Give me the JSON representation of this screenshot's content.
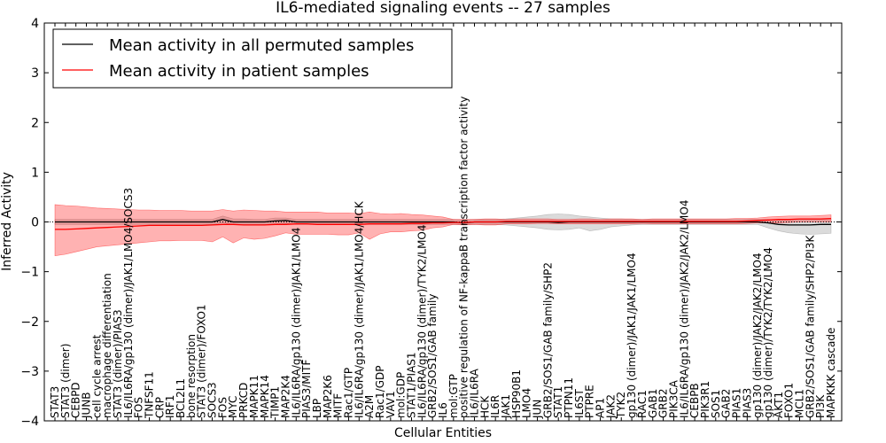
{
  "chart_data": {
    "type": "line",
    "title": "IL6-mediated signaling events -- 27 samples",
    "xlabel": "Cellular Entities",
    "ylabel": "Inferred Activity",
    "ylim": [
      -4,
      4
    ],
    "yticks": [
      -4,
      -3,
      -2,
      -1,
      0,
      1,
      2,
      3,
      4
    ],
    "legend": {
      "placement": "top-left",
      "entries": [
        {
          "label": "Mean activity in all permuted samples",
          "color": "#000000"
        },
        {
          "label": "Mean activity in patient samples",
          "color": "#ff0000"
        }
      ]
    },
    "categories": [
      "STAT3",
      "STAT3 (dimer)",
      "CEBPD",
      "JUNB",
      "cell cycle arrest",
      "macrophage differentiation",
      "STAT3 (dimer)/PIAS3",
      "IL6/IL6RA/gp130 (dimer)/JAK1/LMO4/SOCS3",
      "FOS",
      "TNFSF11",
      "CRP",
      "IRF1",
      "BCL2L1",
      "bone resorption",
      "STAT3 (dimer)/FOXO1",
      "SOCS3",
      "FOS",
      "MYC",
      "PRKCD",
      "MAPK11",
      "MAPK14",
      "TIMP1",
      "MAP2K4",
      "IL6/IL6RA/gp130 (dimer)/JAK1/LMO4",
      "PIAS3/MITF",
      "LBP",
      "MAP2K6",
      "MITF",
      "Rac1/GTP",
      "IL6/IL6RA/gp130 (dimer)/JAK1/LMO4/HCK",
      "A2M",
      "Rac1/GDP",
      "VAV1",
      "mol:GDP",
      "STAT1/PIAS1",
      "IL6/IL6RA/gp130 (dimer)/TYK2/LMO4",
      "GRB2/SOS1/GAB family",
      "IL6",
      "mol:GTP",
      "positive regulation of NF-kappaB transcription factor activity",
      "IL6/IL6RA",
      "HCK",
      "IL6R",
      "JAK1",
      "HSP90B1",
      "LMO4",
      "JUN",
      "GRB2/SOS1/GAB family/SHP2",
      "STAT1",
      "PTPN11",
      "IL6ST",
      "PTPRE",
      "AP1",
      "JAK2",
      "TYK2",
      "gp130 (dimer)/JAK1/JAK1/LMO4",
      "RAC1",
      "GAB1",
      "GRB2",
      "PIK3CA",
      "IL6/IL6RA/gp130 (dimer)/JAK2/JAK2/LMO4",
      "CEBPB",
      "PIK3R1",
      "SOS1",
      "GAB2",
      "PIAS1",
      "PIAS3",
      "gp130 (dimer)/JAK2/JAK2/LMO4",
      "gp130 (dimer)/TYK2/TYK2/LMO4",
      "AKT1",
      "FOXO1",
      "MCL1",
      "GRB2/SOS1/GAB family/SHP2/PI3K",
      "PI3K",
      "MAPKKK cascade"
    ],
    "series": [
      {
        "name": "Mean activity in all permuted samples",
        "color": "#000000",
        "values": [
          0,
          0,
          0,
          0,
          0,
          0,
          0,
          0,
          0,
          0,
          0,
          0,
          0,
          0,
          0,
          0,
          0.05,
          0,
          0,
          0,
          0,
          0.02,
          0.03,
          0,
          0,
          0,
          0,
          0,
          0,
          0,
          0,
          0,
          0,
          0,
          0,
          0,
          0,
          0,
          0,
          -0.02,
          0,
          0,
          0,
          0,
          0,
          0,
          0,
          0,
          -0.01,
          0,
          0,
          0,
          0,
          0,
          0,
          0,
          0,
          0,
          0,
          0,
          0,
          0,
          0,
          0,
          0,
          0,
          0,
          0,
          -0.02,
          -0.05,
          -0.06,
          -0.06,
          -0.06,
          -0.05,
          -0.05
        ],
        "band_upper": [
          0.05,
          0.05,
          0.05,
          0.05,
          0.05,
          0.05,
          0.05,
          0.05,
          0.05,
          0.05,
          0.05,
          0.05,
          0.05,
          0.05,
          0.05,
          0.05,
          0.12,
          0.06,
          0.06,
          0.05,
          0.05,
          0.08,
          0.08,
          0.05,
          0.05,
          0.05,
          0.05,
          0.05,
          0.05,
          0.05,
          0.05,
          0.05,
          0.05,
          0.05,
          0.05,
          0.05,
          0.05,
          0.05,
          0.05,
          0.04,
          0.05,
          0.05,
          0.05,
          0.06,
          0.08,
          0.1,
          0.12,
          0.15,
          0.16,
          0.15,
          0.12,
          0.1,
          0.08,
          0.06,
          0.06,
          0.05,
          0.05,
          0.05,
          0.05,
          0.05,
          0.05,
          0.05,
          0.05,
          0.05,
          0.05,
          0.05,
          0.05,
          0.05,
          0.05,
          0.04,
          0.05,
          0.05,
          0.05,
          0.05,
          0.06
        ],
        "band_lower": [
          -0.05,
          -0.05,
          -0.05,
          -0.05,
          -0.05,
          -0.05,
          -0.05,
          -0.05,
          -0.05,
          -0.05,
          -0.05,
          -0.05,
          -0.05,
          -0.05,
          -0.05,
          -0.05,
          -0.02,
          -0.05,
          -0.05,
          -0.05,
          -0.05,
          -0.04,
          -0.03,
          -0.05,
          -0.05,
          -0.05,
          -0.05,
          -0.05,
          -0.05,
          -0.05,
          -0.05,
          -0.05,
          -0.05,
          -0.05,
          -0.05,
          -0.05,
          -0.05,
          -0.05,
          -0.05,
          -0.06,
          -0.05,
          -0.05,
          -0.05,
          -0.06,
          -0.08,
          -0.1,
          -0.12,
          -0.15,
          -0.16,
          -0.15,
          -0.12,
          -0.18,
          -0.15,
          -0.1,
          -0.08,
          -0.06,
          -0.05,
          -0.05,
          -0.05,
          -0.05,
          -0.05,
          -0.05,
          -0.05,
          -0.05,
          -0.05,
          -0.05,
          -0.05,
          -0.05,
          -0.12,
          -0.18,
          -0.22,
          -0.24,
          -0.25,
          -0.24,
          -0.23
        ]
      },
      {
        "name": "Mean activity in patient samples",
        "color": "#ff0000",
        "values": [
          -0.15,
          -0.15,
          -0.14,
          -0.13,
          -0.12,
          -0.11,
          -0.1,
          -0.09,
          -0.08,
          -0.07,
          -0.07,
          -0.07,
          -0.07,
          -0.07,
          -0.07,
          -0.06,
          -0.05,
          -0.05,
          -0.06,
          -0.06,
          -0.06,
          -0.05,
          -0.05,
          -0.04,
          -0.04,
          -0.05,
          -0.05,
          -0.05,
          -0.05,
          -0.05,
          -0.04,
          -0.04,
          -0.04,
          -0.04,
          -0.03,
          -0.03,
          -0.02,
          -0.02,
          -0.01,
          -0.01,
          0,
          0,
          0,
          0.01,
          0.01,
          0.01,
          0.01,
          0.01,
          0.01,
          0.01,
          0.01,
          0.01,
          0.01,
          0.01,
          0.01,
          0.01,
          0.01,
          0.01,
          0.01,
          0.01,
          0.01,
          0.01,
          0.01,
          0.01,
          0.01,
          0.01,
          0.02,
          0.03,
          0.04,
          0.05,
          0.05,
          0.06,
          0.06,
          0.06,
          0.07
        ],
        "band_upper": [
          0.35,
          0.33,
          0.32,
          0.3,
          0.28,
          0.27,
          0.26,
          0.25,
          0.24,
          0.24,
          0.23,
          0.23,
          0.23,
          0.22,
          0.22,
          0.22,
          0.25,
          0.22,
          0.24,
          0.23,
          0.22,
          0.22,
          0.2,
          0.2,
          0.2,
          0.2,
          0.18,
          0.18,
          0.18,
          0.17,
          0.2,
          0.17,
          0.16,
          0.17,
          0.15,
          0.14,
          0.12,
          0.1,
          0.05,
          0.05,
          0.05,
          0.06,
          0.06,
          0.05,
          0.06,
          0.06,
          0.06,
          0.06,
          0.05,
          0.05,
          0.06,
          0.06,
          0.05,
          0.06,
          0.06,
          0.06,
          0.05,
          0.06,
          0.06,
          0.06,
          0.06,
          0.06,
          0.06,
          0.06,
          0.06,
          0.07,
          0.07,
          0.08,
          0.1,
          0.11,
          0.12,
          0.12,
          0.12,
          0.13,
          0.14
        ],
        "band_lower": [
          -0.68,
          -0.65,
          -0.6,
          -0.55,
          -0.5,
          -0.48,
          -0.46,
          -0.44,
          -0.42,
          -0.4,
          -0.38,
          -0.38,
          -0.37,
          -0.37,
          -0.37,
          -0.4,
          -0.3,
          -0.42,
          -0.32,
          -0.35,
          -0.33,
          -0.28,
          -0.22,
          -0.25,
          -0.25,
          -0.25,
          -0.25,
          -0.26,
          -0.26,
          -0.22,
          -0.35,
          -0.24,
          -0.2,
          -0.2,
          -0.18,
          -0.17,
          -0.12,
          -0.1,
          -0.05,
          -0.06,
          -0.05,
          -0.06,
          -0.06,
          -0.04,
          -0.04,
          -0.04,
          -0.03,
          -0.03,
          -0.04,
          -0.04,
          -0.04,
          -0.04,
          -0.04,
          -0.04,
          -0.04,
          -0.04,
          -0.03,
          -0.04,
          -0.04,
          -0.04,
          -0.04,
          -0.04,
          -0.04,
          -0.04,
          -0.04,
          -0.04,
          -0.03,
          -0.02,
          -0.02,
          -0.02,
          -0.01,
          0,
          0,
          0,
          0
        ]
      }
    ]
  }
}
